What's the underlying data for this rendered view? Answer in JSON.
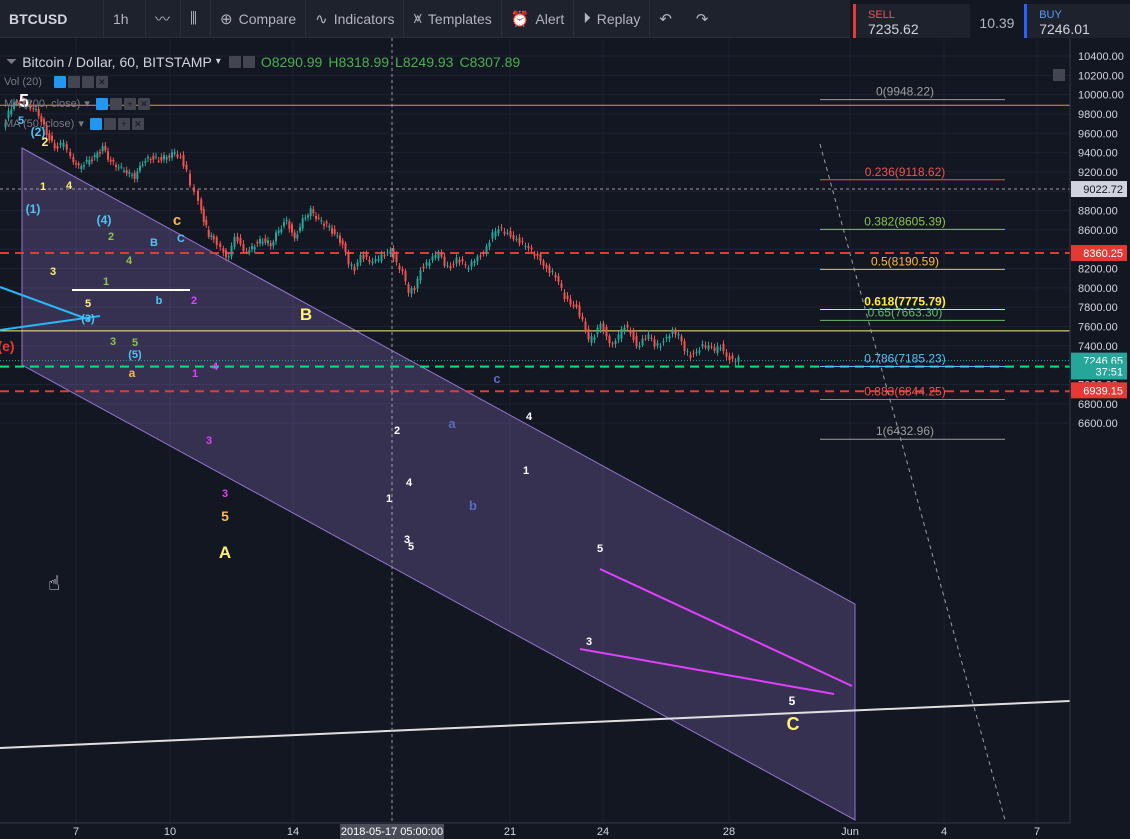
{
  "toolbar": {
    "symbol": "BTCUSD",
    "interval": "1h",
    "compare": "Compare",
    "indicators": "Indicators",
    "templates": "Templates",
    "alert": "Alert",
    "replay": "Replay"
  },
  "trade": {
    "sell_label": "SELL",
    "sell_price": "7235.62",
    "spread": "10.39",
    "buy_label": "BUY",
    "buy_price": "7246.01"
  },
  "legend": {
    "title": "Bitcoin / Dollar, 60, BITSTAMP",
    "open": "O8290.99",
    "high": "H8318.99",
    "low": "L8249.93",
    "close": "C8307.89"
  },
  "indicators": [
    "Vol (20)",
    "MA (200, close)",
    "MA (50, close)"
  ],
  "colors": {
    "background": "#131722",
    "up": "#26a69a",
    "down": "#ef5350",
    "channel": "#9575cd",
    "wedge": "#e040fb",
    "red_dash": "#e53935",
    "green_dash": "#00e676"
  },
  "chart_data": {
    "type": "candlestick",
    "ylim": [
      6500,
      10450
    ],
    "y_ticks": [
      "10400.00",
      "10200.00",
      "10000.00",
      "9800.00",
      "9600.00",
      "9400.00",
      "9200.00",
      "9000.00",
      "8800.00",
      "8600.00",
      "8400.00",
      "8200.00",
      "8000.00",
      "7800.00",
      "7600.00",
      "7400.00",
      "7200.00",
      "7000.00",
      "6800.00",
      "6600.00"
    ],
    "x_ticks": [
      "7",
      "10",
      "14",
      "2018-05-17 05:00:00",
      "21",
      "24",
      "28",
      "Jun",
      "4",
      "7"
    ],
    "series_path": [
      [
        4,
        9650
      ],
      [
        10,
        9820
      ],
      [
        18,
        9930
      ],
      [
        25,
        9900
      ],
      [
        32,
        9880
      ],
      [
        40,
        9800
      ],
      [
        48,
        9600
      ],
      [
        56,
        9450
      ],
      [
        65,
        9500
      ],
      [
        72,
        9350
      ],
      [
        80,
        9250
      ],
      [
        88,
        9300
      ],
      [
        96,
        9350
      ],
      [
        104,
        9450
      ],
      [
        112,
        9300
      ],
      [
        120,
        9250
      ],
      [
        128,
        9200
      ],
      [
        136,
        9150
      ],
      [
        144,
        9300
      ],
      [
        152,
        9350
      ],
      [
        160,
        9330
      ],
      [
        168,
        9360
      ],
      [
        176,
        9400
      ],
      [
        182,
        9350
      ],
      [
        188,
        9200
      ],
      [
        192,
        9050
      ],
      [
        196,
        9000
      ],
      [
        200,
        8900
      ],
      [
        205,
        8700
      ],
      [
        210,
        8550
      ],
      [
        215,
        8500
      ],
      [
        222,
        8400
      ],
      [
        230,
        8300
      ],
      [
        236,
        8550
      ],
      [
        242,
        8450
      ],
      [
        248,
        8350
      ],
      [
        256,
        8450
      ],
      [
        264,
        8500
      ],
      [
        272,
        8450
      ],
      [
        280,
        8600
      ],
      [
        288,
        8700
      ],
      [
        296,
        8500
      ],
      [
        304,
        8700
      ],
      [
        312,
        8800
      ],
      [
        320,
        8700
      ],
      [
        328,
        8650
      ],
      [
        336,
        8550
      ],
      [
        344,
        8450
      ],
      [
        350,
        8250
      ],
      [
        356,
        8200
      ],
      [
        362,
        8350
      ],
      [
        368,
        8300
      ],
      [
        374,
        8250
      ],
      [
        380,
        8300
      ],
      [
        386,
        8350
      ],
      [
        392,
        8400
      ],
      [
        398,
        8250
      ],
      [
        404,
        8150
      ],
      [
        410,
        7950
      ],
      [
        416,
        8000
      ],
      [
        422,
        8200
      ],
      [
        428,
        8250
      ],
      [
        434,
        8300
      ],
      [
        440,
        8350
      ],
      [
        446,
        8250
      ],
      [
        452,
        8220
      ],
      [
        458,
        8300
      ],
      [
        464,
        8250
      ],
      [
        470,
        8200
      ],
      [
        476,
        8300
      ],
      [
        482,
        8350
      ],
      [
        488,
        8420
      ],
      [
        494,
        8550
      ],
      [
        500,
        8600
      ],
      [
        506,
        8580
      ],
      [
        512,
        8550
      ],
      [
        518,
        8500
      ],
      [
        524,
        8450
      ],
      [
        530,
        8400
      ],
      [
        536,
        8350
      ],
      [
        542,
        8300
      ],
      [
        548,
        8200
      ],
      [
        554,
        8150
      ],
      [
        560,
        8050
      ],
      [
        566,
        7900
      ],
      [
        572,
        7850
      ],
      [
        578,
        7800
      ],
      [
        584,
        7650
      ],
      [
        590,
        7450
      ],
      [
        596,
        7500
      ],
      [
        602,
        7650
      ],
      [
        608,
        7500
      ],
      [
        614,
        7400
      ],
      [
        620,
        7500
      ],
      [
        626,
        7600
      ],
      [
        632,
        7550
      ],
      [
        638,
        7400
      ],
      [
        644,
        7450
      ],
      [
        650,
        7500
      ],
      [
        656,
        7400
      ],
      [
        662,
        7420
      ],
      [
        668,
        7500
      ],
      [
        674,
        7550
      ],
      [
        680,
        7500
      ],
      [
        686,
        7350
      ],
      [
        692,
        7300
      ],
      [
        698,
        7350
      ],
      [
        704,
        7400
      ],
      [
        710,
        7380
      ],
      [
        716,
        7350
      ],
      [
        722,
        7400
      ],
      [
        728,
        7300
      ],
      [
        734,
        7250
      ],
      [
        740,
        7260
      ]
    ],
    "price_labels": [
      {
        "value": 9022.72,
        "text": "9022.72"
      },
      {
        "value": 8360.25,
        "text": "8360.25"
      },
      {
        "value": 7246.65,
        "text": "7246.65"
      },
      {
        "value": 7237.51,
        "text": "37:51"
      },
      {
        "value": 6939.15,
        "text": "6939.15"
      }
    ],
    "fib_levels": [
      {
        "ratio": "0",
        "value": 9948.22,
        "text": "0(9948.22)"
      },
      {
        "ratio": "0.236",
        "value": 9118.62,
        "text": "0.236(9118.62)"
      },
      {
        "ratio": "0.382",
        "value": 8605.39,
        "text": "0.382(8605.39)"
      },
      {
        "ratio": "0.5",
        "value": 8190.59,
        "text": "0.5(8190.59)"
      },
      {
        "ratio": "0.618",
        "value": 7775.79,
        "text": "0.618(7775.79)"
      },
      {
        "ratio": "0.65",
        "value": 7663.3,
        "text": "0.65(7663.30)"
      },
      {
        "ratio": "0.786",
        "value": 7185.23,
        "text": "0.786(7185.23)"
      },
      {
        "ratio": "0.883",
        "value": 6844.25,
        "text": "0.883(6844.25)"
      },
      {
        "ratio": "1",
        "value": 6432.96,
        "text": "1(6432.96)"
      }
    ],
    "wave_labels": [
      "5",
      "5",
      "(2)",
      "2",
      "1",
      "4",
      "(1)",
      "3",
      "(4)",
      "2",
      "1",
      "4",
      "5",
      "(3)",
      "3",
      "5",
      "(5)",
      "a",
      "A",
      "B",
      "b",
      "C",
      "c",
      "2",
      "1",
      "4",
      "3",
      "3",
      "5",
      "B",
      "c",
      "a",
      "b",
      "2",
      "1",
      "4",
      "3",
      "5",
      "1",
      "4",
      "5",
      "3",
      "A",
      "c",
      "2",
      "5",
      "C",
      "(e)"
    ]
  }
}
